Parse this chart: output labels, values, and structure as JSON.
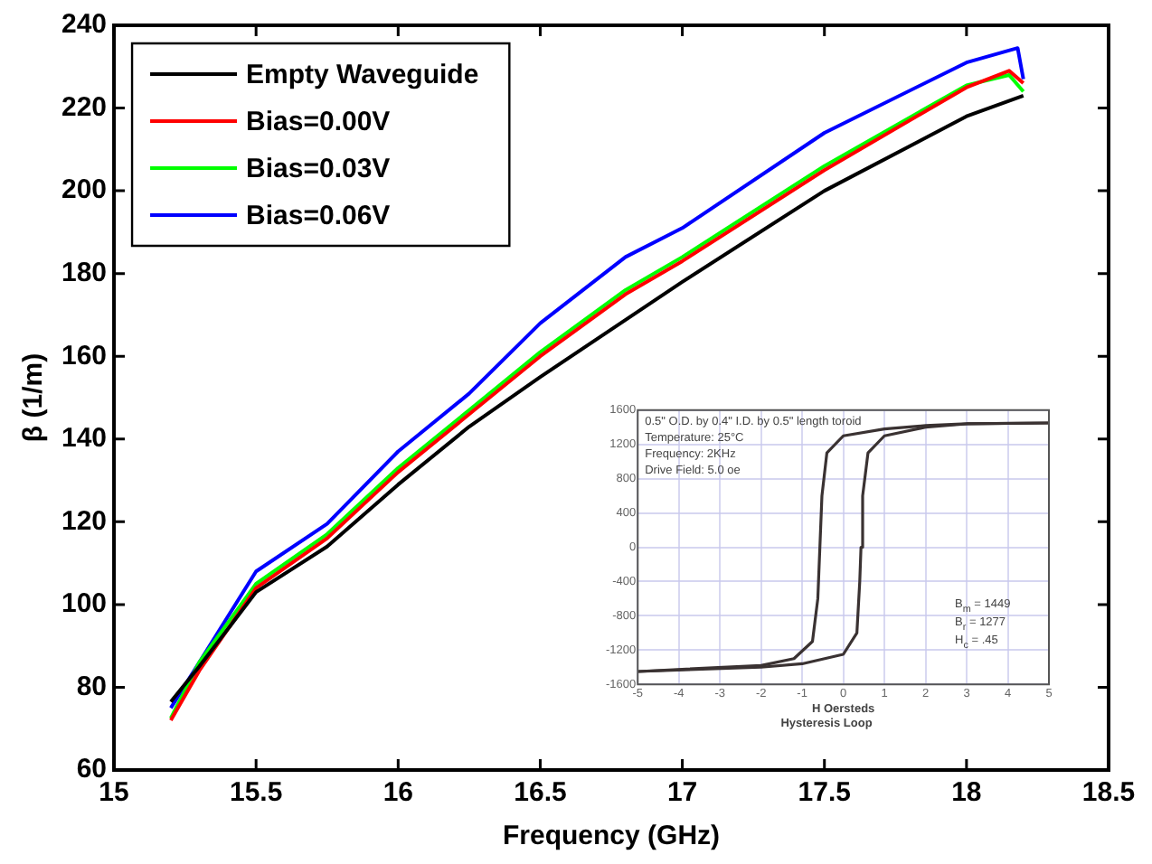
{
  "chart_data": [
    {
      "type": "line",
      "xlabel": "Frequency (GHz)",
      "ylabel": "β (1/m)",
      "xlim": [
        15,
        18.5
      ],
      "xticks": [
        15,
        15.5,
        16,
        16.5,
        17,
        17.5,
        18,
        18.5
      ],
      "ylim": [
        60,
        240
      ],
      "yticks": [
        60,
        80,
        100,
        120,
        140,
        160,
        180,
        200,
        220,
        240
      ],
      "legend": "top left",
      "grid": false,
      "series": [
        {
          "name": "Empty Waveguide",
          "color": "#000000",
          "x": [
            15.2,
            15.3,
            15.5,
            15.75,
            16,
            16.25,
            16.5,
            17,
            17.5,
            18,
            18.2
          ],
          "values": [
            76.5,
            85,
            103,
            114,
            129,
            143,
            155,
            178,
            200,
            218,
            223
          ]
        },
        {
          "name": "Bias=0.00V",
          "color": "#ff0000",
          "x": [
            15.2,
            15.3,
            15.5,
            15.75,
            16,
            16.25,
            16.5,
            16.8,
            17,
            17.5,
            18,
            18.15,
            18.2
          ],
          "values": [
            72,
            84,
            104,
            116,
            132,
            146,
            160,
            175,
            183,
            205,
            225,
            229,
            226
          ]
        },
        {
          "name": "Bias=0.03V",
          "color": "#00ff00",
          "x": [
            15.2,
            15.3,
            15.5,
            15.75,
            16,
            16.25,
            16.5,
            16.8,
            17,
            17.5,
            18,
            18.15,
            18.2
          ],
          "values": [
            72.5,
            86,
            105,
            117,
            133,
            147,
            161,
            176,
            184,
            206,
            225.5,
            228,
            224
          ]
        },
        {
          "name": "Bias=0.06V",
          "color": "#0000ff",
          "x": [
            15.2,
            15.3,
            15.5,
            15.75,
            16,
            16.25,
            16.5,
            16.8,
            17,
            17.5,
            18,
            18.18,
            18.2
          ],
          "values": [
            75,
            86,
            108,
            119.5,
            137,
            151,
            168,
            184,
            191,
            214,
            231,
            234.5,
            227
          ]
        }
      ]
    },
    {
      "type": "line",
      "title": "Hysteresis Loop",
      "xlabel": "H Oersteds",
      "xlim": [
        -5,
        5
      ],
      "xticks": [
        -5,
        -4,
        -3,
        -2,
        -1,
        0,
        1,
        2,
        3,
        4,
        5
      ],
      "ylim": [
        -1600,
        1600
      ],
      "yticks": [
        -1600,
        -1200,
        -800,
        -400,
        0,
        400,
        800,
        1200,
        1600
      ],
      "grid": true,
      "annotations": [
        "0.5\" O.D. by 0.4\" I.D. by 0.5\" length toroid",
        "Temperature: 25°C",
        "Frequency:   2KHz",
        "Drive Field:   5.0 oe",
        "B$_{m}$ = 1449",
        "B$_{r}$ = 1277",
        "H$_{c}$ = .45"
      ],
      "series": [
        {
          "color": "#3a3232",
          "x": [
            5,
            3,
            2,
            1,
            0,
            -0.4,
            -0.52,
            -0.57,
            -0.62,
            -0.75,
            -1.2,
            -2,
            -5
          ],
          "values": [
            1450,
            1440,
            1420,
            1380,
            1300,
            1100,
            600,
            0,
            -600,
            -1100,
            -1300,
            -1380,
            -1450
          ]
        },
        {
          "color": "#3a3232",
          "x": [
            -5,
            -2,
            -1,
            0,
            0.33,
            0.4,
            0.43,
            0.47,
            0.6,
            1,
            2,
            3,
            5
          ],
          "values": [
            -1450,
            -1400,
            -1360,
            -1250,
            -1000,
            -400,
            0,
            600,
            1100,
            1300,
            1400,
            1440,
            1450
          ]
        }
      ]
    }
  ]
}
